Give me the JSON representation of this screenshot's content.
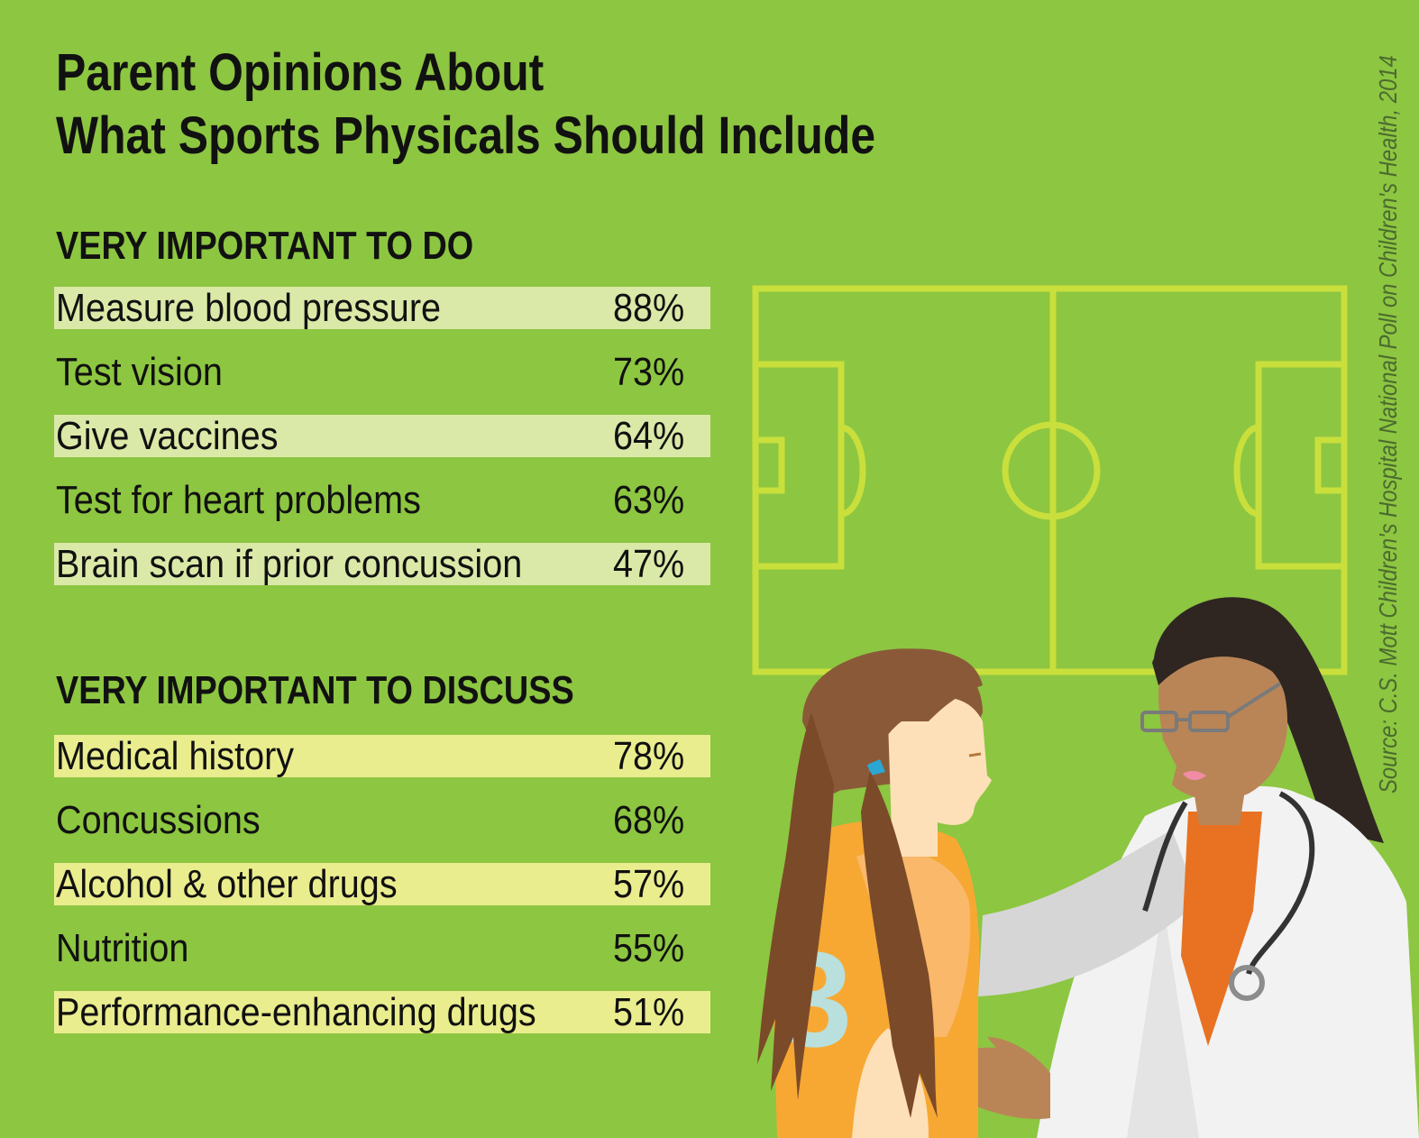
{
  "title_lines": [
    "Parent Opinions About",
    "What Sports Physicals Should Include"
  ],
  "source": "Source: C.S. Mott Children's Hospital National Poll on Children's Health, 2014",
  "chart_data": {
    "type": "table",
    "title": "Parent Opinions About What Sports Physicals Should Include",
    "sections": [
      {
        "heading": "VERY IMPORTANT TO DO",
        "rows": [
          {
            "label": "Measure blood pressure",
            "value": "88%"
          },
          {
            "label": "Test vision",
            "value": "73%"
          },
          {
            "label": "Give vaccines",
            "value": "64%"
          },
          {
            "label": "Test for heart problems",
            "value": "63%"
          },
          {
            "label": "Brain scan if prior concussion",
            "value": "47%"
          }
        ]
      },
      {
        "heading": "VERY IMPORTANT TO DISCUSS",
        "rows": [
          {
            "label": "Medical history",
            "value": "78%"
          },
          {
            "label": "Concussions",
            "value": "68%"
          },
          {
            "label": "Alcohol & other drugs",
            "value": "57%"
          },
          {
            "label": "Nutrition",
            "value": "55%"
          },
          {
            "label": "Performance-enhancing drugs",
            "value": "51%"
          }
        ]
      }
    ]
  },
  "colors": {
    "background": "#8dc641",
    "do_row_band": "#dbe9a8",
    "discuss_row_band": "#eaed8e",
    "field_lines": "#c9df3c",
    "jersey": "#f7a833",
    "coat": "#f2f2f2"
  },
  "jersey_number": "3"
}
